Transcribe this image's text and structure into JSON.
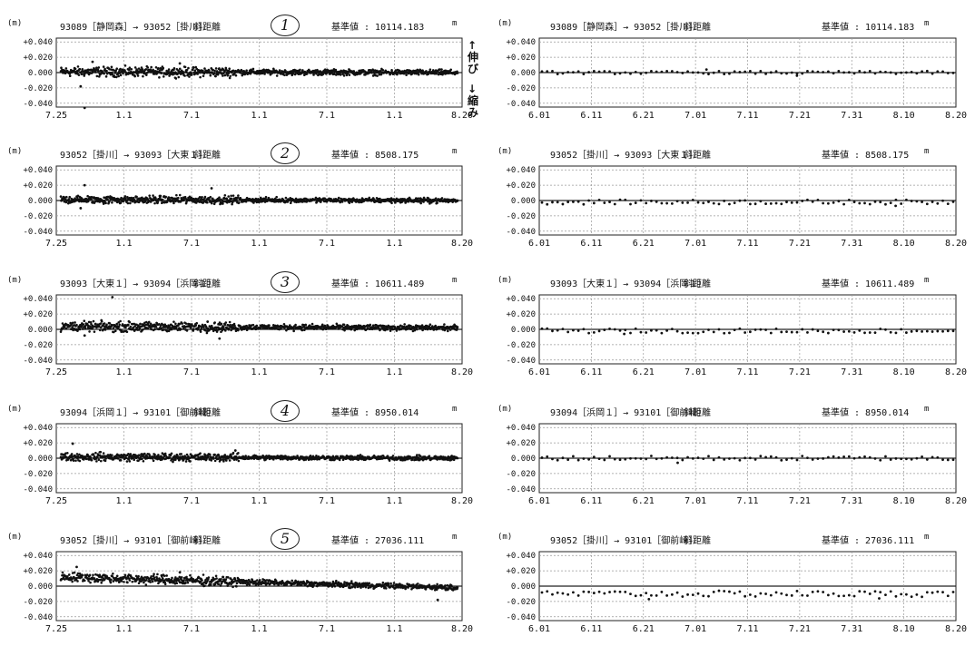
{
  "y_unit": "(m)",
  "suffix_m": "m",
  "distance_label": "斜距離",
  "baseline_label": "基準値 :",
  "yticks": [
    "+0.040",
    "+0.020",
    "0.000",
    "-0.020",
    "-0.040"
  ],
  "x_left": [
    "7.25",
    "1.1",
    "7.1",
    "1.1",
    "7.1",
    "1.1",
    "8.20"
  ],
  "x_right": [
    "6.01",
    "6.11",
    "6.21",
    "7.01",
    "7.11",
    "7.21",
    "7.31",
    "8.10",
    "8.20"
  ],
  "side_up": "↑ 伸 び",
  "side_down": "↓ 縮 み",
  "colors": {
    "dot": "#111111",
    "grid": "#999999",
    "axis": "#222222"
  },
  "chart_data": [
    {
      "type": "scatter",
      "number": "1",
      "route": "93089［静岡森］→ 93052［掛川］",
      "baseline": "10114.183",
      "ylim": [
        -0.045,
        0.045
      ],
      "left_offset": 0.0,
      "right_offset": 0.0,
      "left_trend": 0.002,
      "left_spread": 0.006,
      "right_spread": 0.002,
      "left_outliers": [
        [
          0.06,
          -0.046
        ],
        [
          0.05,
          -0.018
        ],
        [
          0.08,
          0.014
        ],
        [
          0.3,
          0.012
        ]
      ],
      "right_outliers": [
        [
          0.62,
          -0.004
        ],
        [
          0.4,
          0.004
        ]
      ]
    },
    {
      "type": "scatter",
      "number": "2",
      "route": "93052［掛川］→ 93093［大東１］",
      "baseline": "8508.175",
      "ylim": [
        -0.045,
        0.045
      ],
      "left_offset": 0.0,
      "right_offset": -0.002,
      "left_trend": 0.002,
      "left_spread": 0.005,
      "right_spread": 0.003,
      "left_outliers": [
        [
          0.06,
          0.02
        ],
        [
          0.38,
          0.016
        ],
        [
          0.05,
          -0.01
        ]
      ],
      "right_outliers": [
        [
          0.86,
          -0.007
        ]
      ]
    },
    {
      "type": "scatter",
      "number": "3",
      "route": "93093［大東１］→ 93094［浜岡１］",
      "baseline": "10611.489",
      "ylim": [
        -0.045,
        0.045
      ],
      "left_offset": 0.002,
      "right_offset": -0.002,
      "left_trend": 0.003,
      "left_spread": 0.006,
      "right_spread": 0.003,
      "left_outliers": [
        [
          0.13,
          0.042
        ],
        [
          0.37,
          0.01
        ],
        [
          0.4,
          -0.012
        ],
        [
          0.06,
          -0.008
        ]
      ],
      "right_outliers": [
        [
          0.2,
          -0.006
        ]
      ]
    },
    {
      "type": "scatter",
      "number": "4",
      "route": "93094［浜岡１］→ 93101［御前崎］",
      "baseline": "8950.014",
      "ylim": [
        -0.045,
        0.045
      ],
      "left_offset": 0.0,
      "right_offset": 0.0,
      "left_trend": 0.003,
      "left_spread": 0.005,
      "right_spread": 0.003,
      "left_outliers": [
        [
          0.03,
          0.019
        ],
        [
          0.1,
          0.008
        ],
        [
          0.44,
          0.01
        ]
      ],
      "right_outliers": [
        [
          0.33,
          -0.006
        ]
      ]
    },
    {
      "type": "scatter",
      "number": "5",
      "route": "93052［掛川］→ 93101［御前崎］",
      "baseline": "27036.111",
      "ylim": [
        -0.045,
        0.045
      ],
      "left_offset": -0.002,
      "right_offset": -0.01,
      "left_trend": 0.014,
      "left_spread": 0.006,
      "right_spread": 0.004,
      "left_outliers": [
        [
          0.04,
          0.025
        ],
        [
          0.3,
          0.018
        ],
        [
          0.95,
          -0.018
        ]
      ],
      "right_outliers": [
        [
          0.26,
          -0.017
        ],
        [
          0.82,
          -0.016
        ]
      ]
    }
  ]
}
